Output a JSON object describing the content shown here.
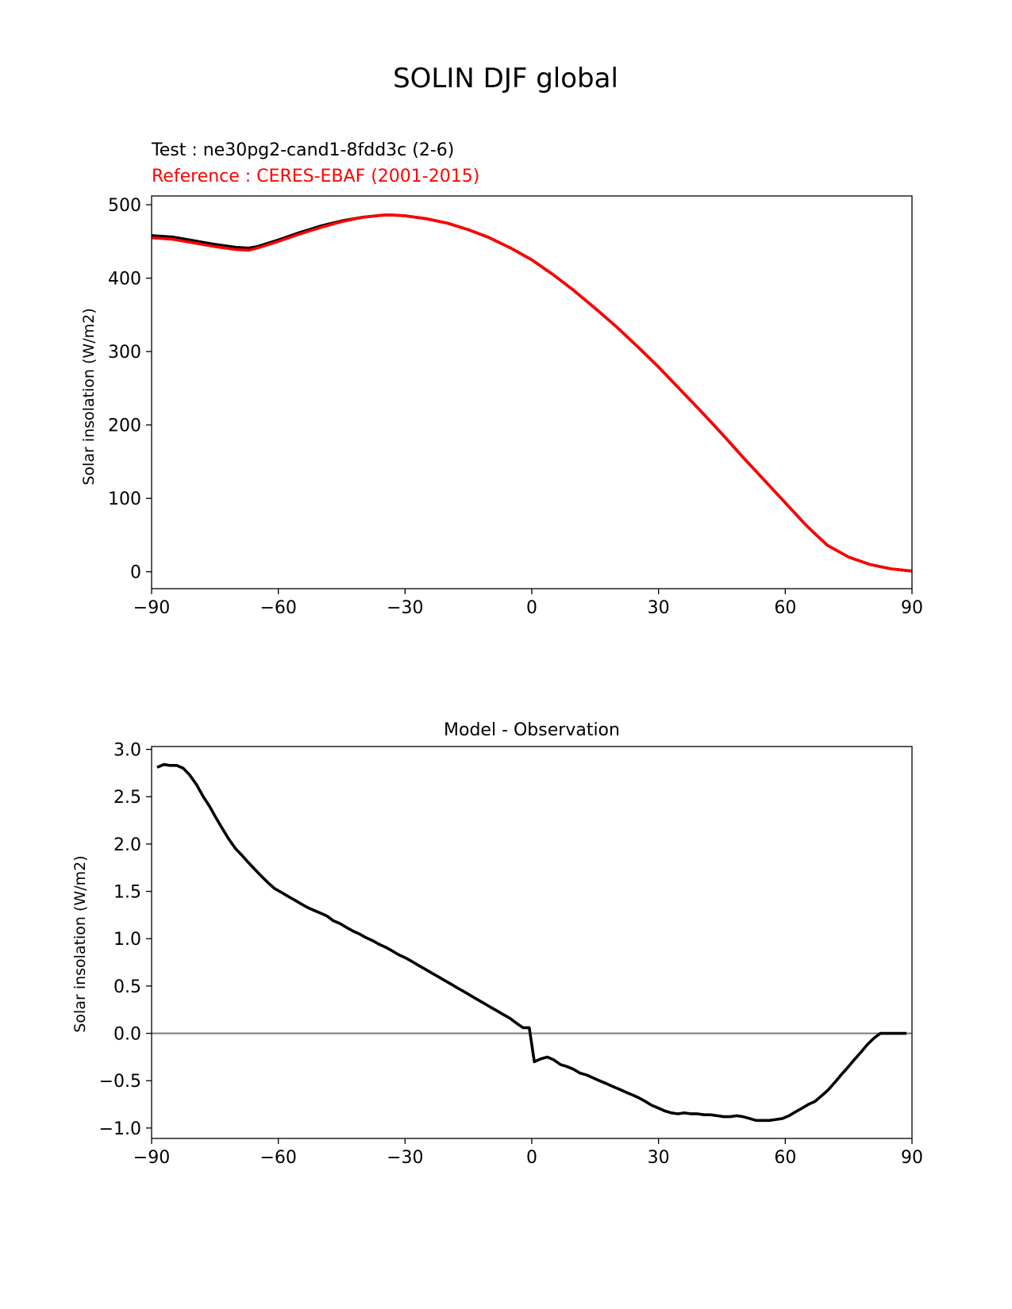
{
  "figure": {
    "title": "SOLIN DJF global"
  },
  "chart_data": [
    {
      "type": "line",
      "title": "",
      "test_label": "Test : ne30pg2-cand1-8fdd3c (2-6)",
      "reference_label": "Reference : CERES-EBAF (2001-2015)",
      "xlabel": "",
      "ylabel": "Solar insolation (W/m2)",
      "xlim": [
        -90,
        90
      ],
      "ylim": [
        -23,
        512
      ],
      "xticks": [
        -90,
        -60,
        -30,
        0,
        30,
        60,
        90
      ],
      "xtick_labels": [
        "−90",
        "−60",
        "−30",
        "0",
        "30",
        "60",
        "90"
      ],
      "yticks": [
        0,
        100,
        200,
        300,
        400,
        500
      ],
      "ytick_labels": [
        "0",
        "100",
        "200",
        "300",
        "400",
        "500"
      ],
      "x": [
        -90,
        -85,
        -80,
        -75,
        -70,
        -67,
        -65,
        -60,
        -55,
        -50,
        -45,
        -40,
        -35,
        -33,
        -30,
        -25,
        -20,
        -15,
        -10,
        -5,
        0,
        5,
        10,
        15,
        20,
        25,
        30,
        35,
        40,
        45,
        50,
        55,
        60,
        65,
        67,
        70,
        75,
        80,
        85,
        90
      ],
      "series": [
        {
          "color": "#000000",
          "values": [
            458,
            456,
            451,
            446,
            442,
            441,
            443,
            452,
            462,
            471,
            478,
            483,
            486,
            486,
            485,
            481,
            475,
            466,
            455,
            441,
            425,
            405,
            383,
            359,
            334,
            307,
            279,
            249,
            219,
            188,
            156,
            125,
            94,
            63,
            52,
            36,
            20,
            10,
            4,
            1
          ]
        },
        {
          "color": "#ff0000",
          "values": [
            455,
            453,
            448,
            443,
            439,
            438,
            441,
            450,
            460,
            469,
            477,
            483,
            486,
            486,
            485,
            481,
            475,
            466,
            455,
            441,
            425,
            405,
            383,
            359,
            334,
            307,
            279,
            249,
            219,
            188,
            156,
            125,
            94,
            63,
            52,
            36,
            20,
            10,
            4,
            1
          ]
        }
      ]
    },
    {
      "type": "line",
      "title": "Model - Observation",
      "xlabel": "",
      "ylabel": "Solar insolation (W/m2)",
      "xlim": [
        -90,
        90
      ],
      "ylim": [
        -1.11,
        3.03
      ],
      "xticks": [
        -90,
        -60,
        -30,
        0,
        30,
        60,
        90
      ],
      "xtick_labels": [
        "−90",
        "−60",
        "−30",
        "0",
        "30",
        "60",
        "90"
      ],
      "yticks": [
        -1.0,
        -0.5,
        0.0,
        0.5,
        1.0,
        1.5,
        2.0,
        2.5,
        3.0
      ],
      "ytick_labels": [
        "−1.0",
        "−0.5",
        "0.0",
        "0.5",
        "1.0",
        "1.5",
        "2.0",
        "2.5",
        "3.0"
      ],
      "zero_line": {
        "y": 0.0,
        "color": "#808080"
      },
      "series": [
        {
          "color": "#000000",
          "x": [
            -88.7,
            -87.1,
            -85.6,
            -84.0,
            -82.5,
            -81.0,
            -79.4,
            -77.9,
            -76.3,
            -74.8,
            -73.2,
            -71.7,
            -70.1,
            -68.6,
            -67.0,
            -65.5,
            -64.0,
            -62.4,
            -60.9,
            -59.3,
            -57.8,
            -56.2,
            -54.7,
            -53.1,
            -51.6,
            -50.0,
            -48.5,
            -47.0,
            -45.4,
            -43.9,
            -42.3,
            -40.8,
            -39.2,
            -37.7,
            -36.1,
            -34.6,
            -33.0,
            -31.5,
            -30.0,
            -28.4,
            -26.9,
            -25.3,
            -23.8,
            -22.2,
            -20.7,
            -19.1,
            -17.6,
            -16.0,
            -14.5,
            -13.0,
            -11.4,
            -9.9,
            -8.3,
            -6.8,
            -5.2,
            -3.7,
            -2.1,
            -0.6,
            0.6,
            2.1,
            3.7,
            5.2,
            6.8,
            8.3,
            9.9,
            11.4,
            13.0,
            14.5,
            16.0,
            17.6,
            19.1,
            20.7,
            22.2,
            23.8,
            25.3,
            26.9,
            28.4,
            30.0,
            31.5,
            33.0,
            34.6,
            36.1,
            37.7,
            39.2,
            40.8,
            42.3,
            43.9,
            45.4,
            47.0,
            48.5,
            50.0,
            51.6,
            53.1,
            54.7,
            56.2,
            57.8,
            59.3,
            60.9,
            62.4,
            64.0,
            65.5,
            67.0,
            68.6,
            70.1,
            71.7,
            73.2,
            74.8,
            76.3,
            77.9,
            79.4,
            81.0,
            82.5,
            84.0,
            85.6,
            87.1,
            88.7
          ],
          "values": [
            2.81,
            2.84,
            2.83,
            2.83,
            2.8,
            2.73,
            2.63,
            2.51,
            2.4,
            2.28,
            2.16,
            2.05,
            1.95,
            1.88,
            1.8,
            1.73,
            1.66,
            1.59,
            1.53,
            1.49,
            1.45,
            1.41,
            1.37,
            1.33,
            1.3,
            1.27,
            1.24,
            1.19,
            1.16,
            1.12,
            1.08,
            1.05,
            1.01,
            0.98,
            0.94,
            0.91,
            0.87,
            0.83,
            0.8,
            0.76,
            0.72,
            0.68,
            0.64,
            0.6,
            0.56,
            0.52,
            0.48,
            0.44,
            0.4,
            0.36,
            0.32,
            0.28,
            0.24,
            0.2,
            0.16,
            0.11,
            0.06,
            0.06,
            -0.3,
            -0.27,
            -0.25,
            -0.28,
            -0.33,
            -0.35,
            -0.38,
            -0.42,
            -0.44,
            -0.47,
            -0.5,
            -0.53,
            -0.56,
            -0.59,
            -0.62,
            -0.65,
            -0.68,
            -0.72,
            -0.76,
            -0.79,
            -0.82,
            -0.84,
            -0.85,
            -0.84,
            -0.85,
            -0.85,
            -0.86,
            -0.86,
            -0.87,
            -0.88,
            -0.88,
            -0.87,
            -0.88,
            -0.9,
            -0.92,
            -0.92,
            -0.92,
            -0.91,
            -0.9,
            -0.87,
            -0.83,
            -0.79,
            -0.75,
            -0.72,
            -0.66,
            -0.6,
            -0.52,
            -0.44,
            -0.36,
            -0.28,
            -0.2,
            -0.12,
            -0.05,
            0.0,
            0.0,
            0.0,
            0.0,
            0.0
          ]
        }
      ]
    }
  ]
}
